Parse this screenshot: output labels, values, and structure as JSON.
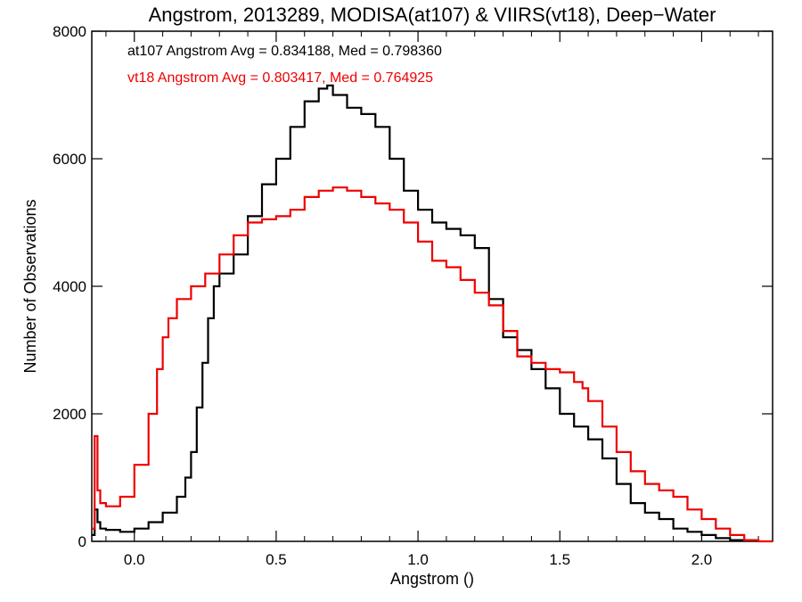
{
  "chart_data": {
    "type": "line",
    "title": "Angstrom, 2013289, MODISA(at107) & VIIRS(vt18), Deep−Water",
    "xlabel": "Angstrom ()",
    "ylabel": "Number of Observations",
    "xlim": [
      -0.15,
      2.25
    ],
    "ylim": [
      0,
      8000
    ],
    "x_ticks": [
      0.0,
      0.5,
      1.0,
      1.5,
      2.0
    ],
    "x_tick_labels": [
      "0.0",
      "0.5",
      "1.0",
      "1.5",
      "2.0"
    ],
    "y_ticks": [
      0,
      2000,
      4000,
      6000,
      8000
    ],
    "y_tick_labels": [
      "0",
      "2000",
      "4000",
      "6000",
      "8000"
    ],
    "step": true,
    "grid": false,
    "annotations": [
      {
        "text": "at107 Angstrom Avg = 0.834188, Med = 0.798360",
        "color": "#000000"
      },
      {
        "text": "vt18 Angstrom Avg = 0.803417, Med = 0.764925",
        "color": "#ee0000"
      }
    ],
    "series": [
      {
        "color": "#000000",
        "x": [
          -0.15,
          -0.14,
          -0.13,
          -0.12,
          -0.1,
          -0.05,
          0.0,
          0.05,
          0.1,
          0.15,
          0.18,
          0.2,
          0.22,
          0.24,
          0.26,
          0.28,
          0.3,
          0.35,
          0.4,
          0.45,
          0.5,
          0.55,
          0.6,
          0.65,
          0.68,
          0.7,
          0.75,
          0.8,
          0.85,
          0.9,
          0.95,
          1.0,
          1.05,
          1.1,
          1.15,
          1.2,
          1.25,
          1.3,
          1.35,
          1.4,
          1.45,
          1.5,
          1.55,
          1.6,
          1.65,
          1.7,
          1.75,
          1.8,
          1.85,
          1.9,
          1.95,
          2.0,
          2.05,
          2.1,
          2.15
        ],
        "y": [
          100,
          500,
          300,
          200,
          180,
          150,
          200,
          300,
          450,
          700,
          1000,
          1400,
          2100,
          2800,
          3500,
          4000,
          4200,
          4500,
          5100,
          5600,
          6000,
          6500,
          6900,
          7100,
          7150,
          7000,
          6800,
          6700,
          6500,
          6000,
          5500,
          5200,
          5000,
          4900,
          4800,
          4600,
          3800,
          3200,
          3000,
          2700,
          2400,
          2000,
          1800,
          1600,
          1300,
          900,
          600,
          450,
          350,
          200,
          150,
          100,
          50,
          20,
          5
        ]
      },
      {
        "color": "#ee0000",
        "x": [
          -0.15,
          -0.14,
          -0.13,
          -0.12,
          -0.1,
          -0.05,
          0.0,
          0.05,
          0.08,
          0.1,
          0.12,
          0.15,
          0.2,
          0.25,
          0.3,
          0.35,
          0.4,
          0.45,
          0.5,
          0.55,
          0.6,
          0.65,
          0.7,
          0.75,
          0.8,
          0.85,
          0.9,
          0.95,
          1.0,
          1.05,
          1.1,
          1.15,
          1.2,
          1.25,
          1.3,
          1.35,
          1.4,
          1.45,
          1.5,
          1.55,
          1.58,
          1.6,
          1.65,
          1.7,
          1.75,
          1.8,
          1.85,
          1.9,
          1.95,
          2.0,
          2.05,
          2.1,
          2.15,
          2.2,
          2.25
        ],
        "y": [
          200,
          1650,
          800,
          600,
          550,
          700,
          1200,
          2000,
          2700,
          3200,
          3500,
          3800,
          4000,
          4200,
          4500,
          4800,
          5000,
          5050,
          5100,
          5200,
          5400,
          5500,
          5550,
          5500,
          5400,
          5300,
          5200,
          5000,
          4700,
          4400,
          4300,
          4100,
          3900,
          3700,
          3300,
          2900,
          2800,
          2700,
          2650,
          2500,
          2400,
          2200,
          1800,
          1400,
          1100,
          900,
          800,
          700,
          500,
          350,
          200,
          100,
          20,
          0,
          0
        ]
      }
    ]
  }
}
